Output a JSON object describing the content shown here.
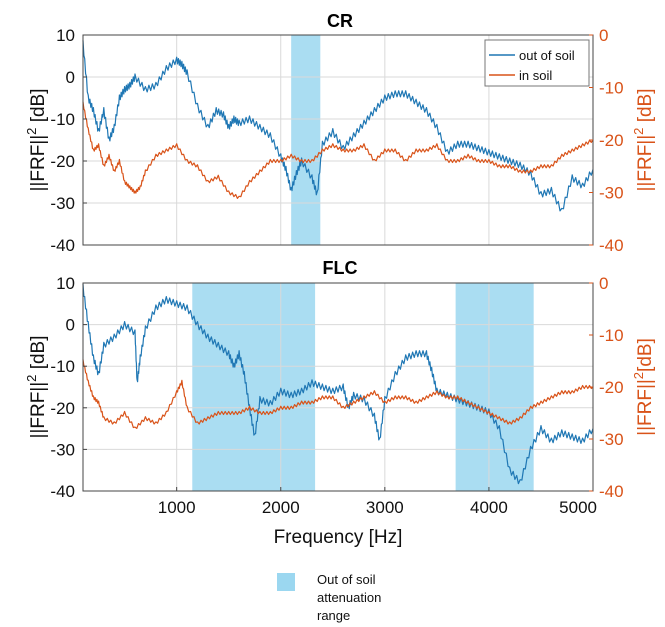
{
  "colors": {
    "out_of_soil": "#1f77b4",
    "in_soil": "#d95319",
    "attenuation": "#9bd7f0",
    "right_axis": "#d95319"
  },
  "chart_data": [
    {
      "type": "line",
      "title": "CR",
      "xlabel": "",
      "ylabel_left": "||FRF||2 [dB]",
      "ylabel_right": "||FRF||2 [dB]",
      "xlim": [
        100,
        5000
      ],
      "ylim_left": [
        -40,
        10
      ],
      "ylim_right": [
        -40,
        0
      ],
      "yticks_left": [
        "10",
        "0",
        "-10",
        "-20",
        "-30",
        "-40"
      ],
      "yticks_right": [
        "0",
        "-10",
        "-20",
        "-30",
        "-40"
      ],
      "grid": true,
      "legend_position": "top-right",
      "legend": [
        "out of soil",
        "in soil"
      ],
      "shaded_ranges": [
        [
          2100,
          2380
        ]
      ],
      "series": [
        {
          "name": "out of soil",
          "axis": "left",
          "x": [
            100,
            150,
            200,
            250,
            300,
            350,
            400,
            450,
            500,
            550,
            600,
            700,
            800,
            900,
            1000,
            1050,
            1100,
            1200,
            1300,
            1380,
            1450,
            1500,
            1550,
            1600,
            1700,
            1800,
            1900,
            2000,
            2050,
            2100,
            2150,
            2200,
            2300,
            2350,
            2400,
            2500,
            2600,
            2700,
            2800,
            2900,
            3000,
            3100,
            3200,
            3300,
            3400,
            3500,
            3600,
            3700,
            3800,
            3900,
            4000,
            4100,
            4200,
            4300,
            4400,
            4500,
            4600,
            4700,
            4800,
            4900,
            5000
          ],
          "y": [
            8,
            -5,
            -8,
            -13,
            -8,
            -15,
            -12,
            -5,
            -3,
            -2,
            0,
            -3,
            -2,
            2,
            4,
            3,
            1,
            -7,
            -12,
            -8,
            -9,
            -12,
            -10,
            -11,
            -10,
            -12,
            -14,
            -19,
            -22,
            -27,
            -23,
            -20,
            -24,
            -28,
            -16,
            -13,
            -17,
            -14,
            -11,
            -8,
            -5,
            -4,
            -4,
            -6,
            -8,
            -12,
            -18,
            -16,
            -16,
            -17,
            -18,
            -19,
            -20,
            -21,
            -23,
            -28,
            -27,
            -32,
            -24,
            -26,
            -22
          ]
        },
        {
          "name": "in soil",
          "axis": "right",
          "x": [
            100,
            150,
            200,
            250,
            300,
            350,
            400,
            450,
            500,
            550,
            600,
            650,
            700,
            800,
            900,
            1000,
            1100,
            1200,
            1300,
            1400,
            1500,
            1600,
            1700,
            1800,
            1900,
            2000,
            2100,
            2200,
            2300,
            2400,
            2500,
            2600,
            2700,
            2800,
            2900,
            3000,
            3100,
            3200,
            3300,
            3400,
            3500,
            3600,
            3700,
            3800,
            3900,
            4000,
            4100,
            4200,
            4300,
            4400,
            4500,
            4600,
            4700,
            4800,
            4900,
            5000
          ],
          "y": [
            -13,
            -18,
            -22,
            -21,
            -25,
            -23,
            -26,
            -24,
            -28,
            -29,
            -30,
            -29,
            -26,
            -23,
            -22,
            -21,
            -24,
            -25,
            -28,
            -27,
            -30,
            -31,
            -28,
            -26,
            -24,
            -24,
            -23,
            -24,
            -24,
            -22,
            -21,
            -22,
            -22,
            -21,
            -24,
            -22,
            -22,
            -24,
            -22,
            -22,
            -21,
            -24,
            -24,
            -23,
            -24,
            -24,
            -25,
            -25,
            -26,
            -26,
            -25,
            -25,
            -23,
            -22,
            -21,
            -20
          ]
        }
      ]
    },
    {
      "type": "line",
      "title": "FLC",
      "xlabel": "Frequency [Hz]",
      "ylabel_left": "||FRF||2 [dB]",
      "ylabel_right": "||FRF||2[dB]",
      "xlim": [
        100,
        5000
      ],
      "ylim_left": [
        -40,
        10
      ],
      "ylim_right": [
        -40,
        0
      ],
      "yticks_left": [
        "10",
        "0",
        "-10",
        "-20",
        "-30",
        "-40"
      ],
      "yticks_right": [
        "0",
        "-10",
        "-20",
        "-30",
        "-40"
      ],
      "xticks": [
        "1000",
        "2000",
        "3000",
        "4000",
        "5000"
      ],
      "grid": true,
      "shaded_ranges": [
        [
          1150,
          2330
        ],
        [
          3680,
          4430
        ]
      ],
      "series": [
        {
          "name": "out of soil",
          "axis": "left",
          "x": [
            100,
            150,
            200,
            250,
            300,
            400,
            500,
            600,
            620,
            650,
            700,
            800,
            900,
            1000,
            1100,
            1200,
            1300,
            1400,
            1500,
            1550,
            1600,
            1650,
            1700,
            1750,
            1800,
            1900,
            2000,
            2100,
            2200,
            2300,
            2400,
            2500,
            2600,
            2650,
            2700,
            2800,
            2900,
            2950,
            3000,
            3100,
            3200,
            3300,
            3400,
            3450,
            3500,
            3600,
            3700,
            3800,
            3900,
            4000,
            4100,
            4200,
            4300,
            4400,
            4500,
            4600,
            4700,
            4800,
            4900,
            5000
          ],
          "y": [
            9,
            0,
            -8,
            -12,
            -5,
            -3,
            0,
            -2,
            -14,
            -8,
            -1,
            4,
            6,
            5,
            4,
            0,
            -3,
            -5,
            -7,
            -10,
            -7,
            -12,
            -20,
            -27,
            -18,
            -19,
            -16,
            -17,
            -16,
            -14,
            -15,
            -16,
            -15,
            -20,
            -17,
            -18,
            -22,
            -28,
            -18,
            -12,
            -8,
            -7,
            -7,
            -11,
            -16,
            -17,
            -18,
            -19,
            -20,
            -21,
            -25,
            -35,
            -38,
            -30,
            -25,
            -28,
            -26,
            -27,
            -28,
            -25
          ]
        },
        {
          "name": "in soil",
          "axis": "right",
          "x": [
            100,
            150,
            200,
            250,
            300,
            400,
            500,
            600,
            700,
            800,
            900,
            1000,
            1050,
            1100,
            1200,
            1300,
            1400,
            1500,
            1600,
            1700,
            1800,
            1900,
            2000,
            2100,
            2200,
            2300,
            2400,
            2500,
            2600,
            2700,
            2800,
            2900,
            3000,
            3100,
            3200,
            3300,
            3400,
            3500,
            3600,
            3700,
            3800,
            3900,
            4000,
            4100,
            4200,
            4300,
            4400,
            4500,
            4600,
            4700,
            4800,
            4900,
            5000
          ],
          "y": [
            -15,
            -19,
            -22,
            -23,
            -26,
            -27,
            -25,
            -28,
            -26,
            -27,
            -25,
            -21,
            -19,
            -24,
            -27,
            -26,
            -25,
            -25,
            -25,
            -24,
            -25,
            -25,
            -24,
            -24,
            -23,
            -23,
            -22,
            -22,
            -24,
            -23,
            -22,
            -21,
            -23,
            -22,
            -22,
            -23,
            -22,
            -21,
            -22,
            -22,
            -23,
            -24,
            -25,
            -26,
            -27,
            -26,
            -24,
            -23,
            -22,
            -21,
            -21,
            -20,
            -20
          ]
        }
      ]
    }
  ],
  "attenuation_legend": {
    "label_lines": [
      "Out of soil",
      "attenuation",
      "range"
    ]
  }
}
